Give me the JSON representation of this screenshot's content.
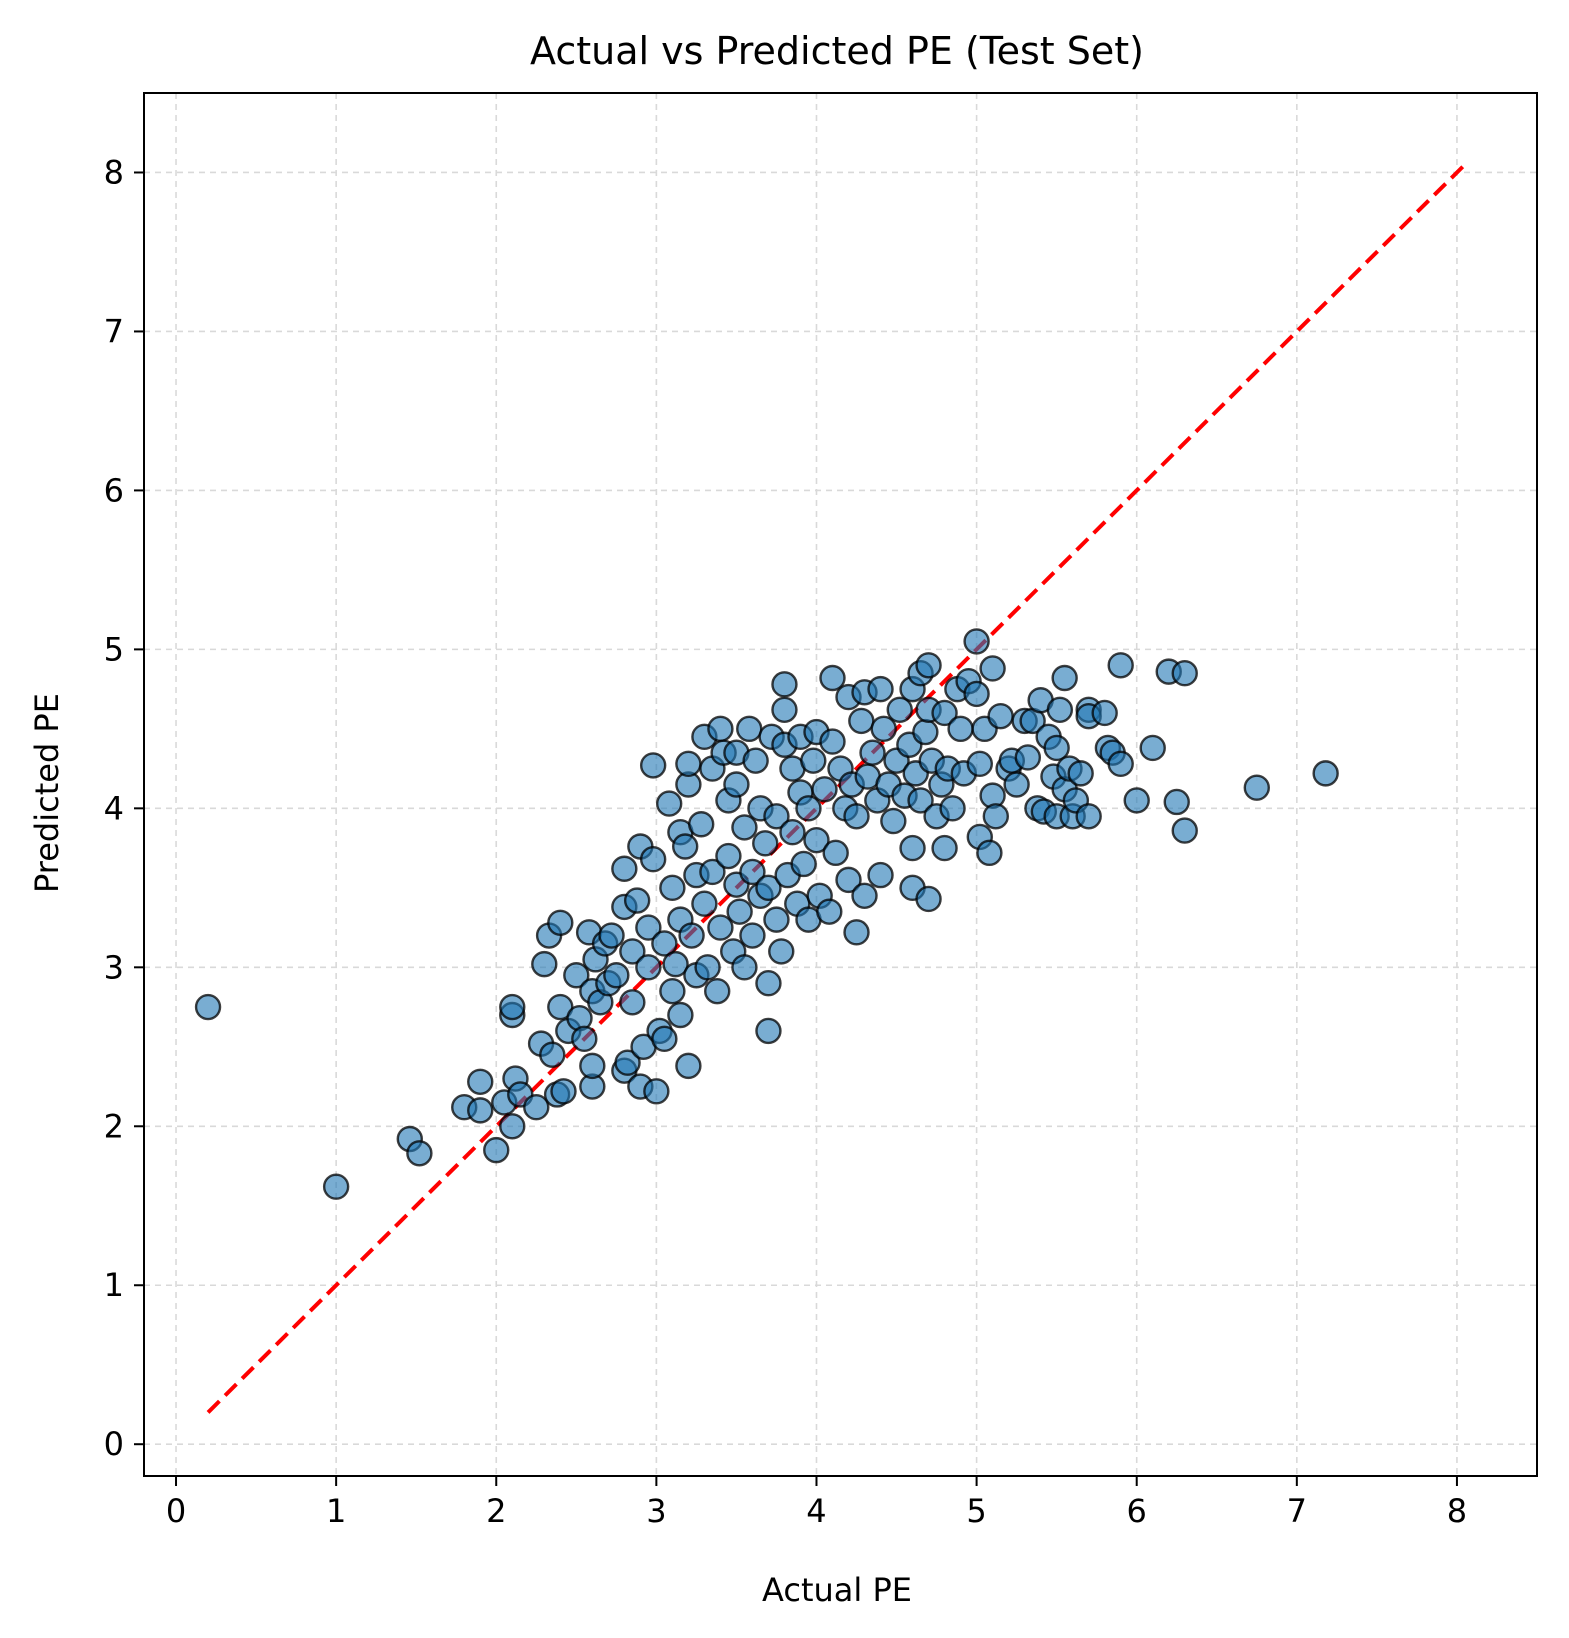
{
  "colors": {
    "point_fill": "#1f77b4",
    "point_edge": "#000000",
    "reference_line": "#ff0000",
    "grid": "#d9d9d9"
  },
  "chart_data": {
    "type": "scatter",
    "title": "Actual vs Predicted PE (Test Set)",
    "xlabel": "Actual PE",
    "ylabel": "Predicted PE",
    "xlim": [
      -0.2,
      8.5
    ],
    "ylim": [
      -0.2,
      8.5
    ],
    "xticks": [
      "0",
      "1",
      "2",
      "3",
      "4",
      "5",
      "6",
      "7",
      "8"
    ],
    "yticks": [
      "0",
      "1",
      "2",
      "3",
      "4",
      "5",
      "6",
      "7",
      "8"
    ],
    "grid": true,
    "reference_line": {
      "from": [
        0.2,
        0.2
      ],
      "to": [
        8.05,
        8.05
      ],
      "style": "dashed"
    },
    "series": [
      {
        "points": [
          [
            0.2,
            2.75
          ],
          [
            1.0,
            1.62
          ],
          [
            1.46,
            1.92
          ],
          [
            1.52,
            1.83
          ],
          [
            1.8,
            2.12
          ],
          [
            1.9,
            2.28
          ],
          [
            1.9,
            2.1
          ],
          [
            2.0,
            1.85
          ],
          [
            2.05,
            2.15
          ],
          [
            2.1,
            2.0
          ],
          [
            2.1,
            2.7
          ],
          [
            2.1,
            2.75
          ],
          [
            2.12,
            2.3
          ],
          [
            2.15,
            2.2
          ],
          [
            2.25,
            2.12
          ],
          [
            2.28,
            2.52
          ],
          [
            2.3,
            3.02
          ],
          [
            2.33,
            3.2
          ],
          [
            2.35,
            2.45
          ],
          [
            2.38,
            2.2
          ],
          [
            2.4,
            2.75
          ],
          [
            2.4,
            3.28
          ],
          [
            2.42,
            2.22
          ],
          [
            2.45,
            2.6
          ],
          [
            2.5,
            2.95
          ],
          [
            2.52,
            2.68
          ],
          [
            2.55,
            2.55
          ],
          [
            2.58,
            3.22
          ],
          [
            2.6,
            2.85
          ],
          [
            2.6,
            2.25
          ],
          [
            2.6,
            2.38
          ],
          [
            2.62,
            3.05
          ],
          [
            2.65,
            2.78
          ],
          [
            2.68,
            3.15
          ],
          [
            2.7,
            2.9
          ],
          [
            2.72,
            3.2
          ],
          [
            2.75,
            2.95
          ],
          [
            2.8,
            3.62
          ],
          [
            2.8,
            3.38
          ],
          [
            2.8,
            2.35
          ],
          [
            2.82,
            2.4
          ],
          [
            2.85,
            3.1
          ],
          [
            2.85,
            2.78
          ],
          [
            2.88,
            3.42
          ],
          [
            2.9,
            2.25
          ],
          [
            2.9,
            3.76
          ],
          [
            2.92,
            2.5
          ],
          [
            2.95,
            3.0
          ],
          [
            2.95,
            3.25
          ],
          [
            2.98,
            3.68
          ],
          [
            2.98,
            4.27
          ],
          [
            3.0,
            2.22
          ],
          [
            3.02,
            2.6
          ],
          [
            3.05,
            3.15
          ],
          [
            3.05,
            2.55
          ],
          [
            3.08,
            4.03
          ],
          [
            3.1,
            2.85
          ],
          [
            3.1,
            3.5
          ],
          [
            3.12,
            3.02
          ],
          [
            3.15,
            3.3
          ],
          [
            3.15,
            3.85
          ],
          [
            3.15,
            2.7
          ],
          [
            3.18,
            3.76
          ],
          [
            3.2,
            4.15
          ],
          [
            3.2,
            2.38
          ],
          [
            3.2,
            4.28
          ],
          [
            3.22,
            3.2
          ],
          [
            3.25,
            2.95
          ],
          [
            3.25,
            3.58
          ],
          [
            3.28,
            3.9
          ],
          [
            3.3,
            4.45
          ],
          [
            3.3,
            3.4
          ],
          [
            3.32,
            3.0
          ],
          [
            3.35,
            4.25
          ],
          [
            3.35,
            3.6
          ],
          [
            3.38,
            2.85
          ],
          [
            3.4,
            4.5
          ],
          [
            3.4,
            3.25
          ],
          [
            3.42,
            4.35
          ],
          [
            3.45,
            4.05
          ],
          [
            3.45,
            3.7
          ],
          [
            3.48,
            3.1
          ],
          [
            3.5,
            4.15
          ],
          [
            3.5,
            3.52
          ],
          [
            3.5,
            4.35
          ],
          [
            3.52,
            3.35
          ],
          [
            3.55,
            3.0
          ],
          [
            3.55,
            3.88
          ],
          [
            3.58,
            4.5
          ],
          [
            3.6,
            3.6
          ],
          [
            3.6,
            3.2
          ],
          [
            3.62,
            4.3
          ],
          [
            3.65,
            4.0
          ],
          [
            3.65,
            3.45
          ],
          [
            3.68,
            3.78
          ],
          [
            3.7,
            2.9
          ],
          [
            3.7,
            2.6
          ],
          [
            3.7,
            3.5
          ],
          [
            3.72,
            4.45
          ],
          [
            3.75,
            3.3
          ],
          [
            3.75,
            3.95
          ],
          [
            3.78,
            3.1
          ],
          [
            3.8,
            4.78
          ],
          [
            3.8,
            4.62
          ],
          [
            3.8,
            4.4
          ],
          [
            3.82,
            3.58
          ],
          [
            3.85,
            4.25
          ],
          [
            3.85,
            3.85
          ],
          [
            3.88,
            3.4
          ],
          [
            3.9,
            4.1
          ],
          [
            3.9,
            4.45
          ],
          [
            3.92,
            3.65
          ],
          [
            3.95,
            3.3
          ],
          [
            3.95,
            4.0
          ],
          [
            3.98,
            4.3
          ],
          [
            4.0,
            3.8
          ],
          [
            4.0,
            4.48
          ],
          [
            4.02,
            3.45
          ],
          [
            4.05,
            4.12
          ],
          [
            4.08,
            3.35
          ],
          [
            4.1,
            4.82
          ],
          [
            4.1,
            4.42
          ],
          [
            4.12,
            3.72
          ],
          [
            4.15,
            4.25
          ],
          [
            4.18,
            4.0
          ],
          [
            4.2,
            4.7
          ],
          [
            4.2,
            3.55
          ],
          [
            4.22,
            4.15
          ],
          [
            4.25,
            3.22
          ],
          [
            4.25,
            3.95
          ],
          [
            4.28,
            4.55
          ],
          [
            4.3,
            4.73
          ],
          [
            4.3,
            3.45
          ],
          [
            4.32,
            4.2
          ],
          [
            4.35,
            4.35
          ],
          [
            4.38,
            4.05
          ],
          [
            4.4,
            4.75
          ],
          [
            4.4,
            3.58
          ],
          [
            4.42,
            4.5
          ],
          [
            4.45,
            4.15
          ],
          [
            4.48,
            3.92
          ],
          [
            4.5,
            4.3
          ],
          [
            4.52,
            4.62
          ],
          [
            4.55,
            4.08
          ],
          [
            4.58,
            4.4
          ],
          [
            4.6,
            4.75
          ],
          [
            4.6,
            3.75
          ],
          [
            4.6,
            3.5
          ],
          [
            4.62,
            4.22
          ],
          [
            4.65,
            4.85
          ],
          [
            4.65,
            4.05
          ],
          [
            4.68,
            4.48
          ],
          [
            4.7,
            4.9
          ],
          [
            4.7,
            4.62
          ],
          [
            4.7,
            3.43
          ],
          [
            4.72,
            4.3
          ],
          [
            4.75,
            3.95
          ],
          [
            4.78,
            4.15
          ],
          [
            4.8,
            4.6
          ],
          [
            4.8,
            3.75
          ],
          [
            4.82,
            4.25
          ],
          [
            4.85,
            4.0
          ],
          [
            4.88,
            4.75
          ],
          [
            4.9,
            4.5
          ],
          [
            4.92,
            4.22
          ],
          [
            4.95,
            4.8
          ],
          [
            5.0,
            5.05
          ],
          [
            5.0,
            4.72
          ],
          [
            5.02,
            4.28
          ],
          [
            5.02,
            3.82
          ],
          [
            5.05,
            4.5
          ],
          [
            5.08,
            3.72
          ],
          [
            5.1,
            4.88
          ],
          [
            5.1,
            4.08
          ],
          [
            5.12,
            3.95
          ],
          [
            5.15,
            4.58
          ],
          [
            5.2,
            4.25
          ],
          [
            5.22,
            4.3
          ],
          [
            5.25,
            4.15
          ],
          [
            5.3,
            4.55
          ],
          [
            5.32,
            4.32
          ],
          [
            5.35,
            4.55
          ],
          [
            5.38,
            4.0
          ],
          [
            5.4,
            4.68
          ],
          [
            5.42,
            3.98
          ],
          [
            5.45,
            4.45
          ],
          [
            5.48,
            4.2
          ],
          [
            5.5,
            4.38
          ],
          [
            5.5,
            3.95
          ],
          [
            5.52,
            4.62
          ],
          [
            5.55,
            4.82
          ],
          [
            5.55,
            4.12
          ],
          [
            5.58,
            4.25
          ],
          [
            5.6,
            3.95
          ],
          [
            5.62,
            4.05
          ],
          [
            5.65,
            4.22
          ],
          [
            5.7,
            4.62
          ],
          [
            5.7,
            4.58
          ],
          [
            5.7,
            3.95
          ],
          [
            5.8,
            4.6
          ],
          [
            5.82,
            4.38
          ],
          [
            5.85,
            4.35
          ],
          [
            5.9,
            4.9
          ],
          [
            5.9,
            4.28
          ],
          [
            6.0,
            4.05
          ],
          [
            6.1,
            4.38
          ],
          [
            6.2,
            4.86
          ],
          [
            6.25,
            4.04
          ],
          [
            6.3,
            4.85
          ],
          [
            6.3,
            3.86
          ],
          [
            6.75,
            4.13
          ],
          [
            7.18,
            4.22
          ]
        ]
      }
    ]
  }
}
